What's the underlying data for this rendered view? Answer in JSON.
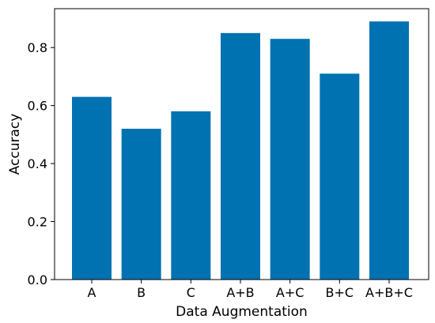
{
  "chart_data": {
    "type": "bar",
    "title": "",
    "xlabel": "Data Augmentation",
    "ylabel": "Accuracy",
    "categories": [
      "A",
      "B",
      "C",
      "A+B",
      "A+C",
      "B+C",
      "A+B+C"
    ],
    "values": [
      0.63,
      0.52,
      0.58,
      0.85,
      0.83,
      0.71,
      0.89
    ],
    "ylim": [
      0,
      0.934
    ],
    "yticks": [
      0.0,
      0.2,
      0.4,
      0.6,
      0.8
    ],
    "ytick_labels": [
      "0.0",
      "0.2",
      "0.4",
      "0.6",
      "0.8"
    ],
    "grid": false,
    "legend": "none",
    "colors": {
      "bar": "#0072b2",
      "axis": "#000000",
      "background": "#ffffff"
    }
  }
}
